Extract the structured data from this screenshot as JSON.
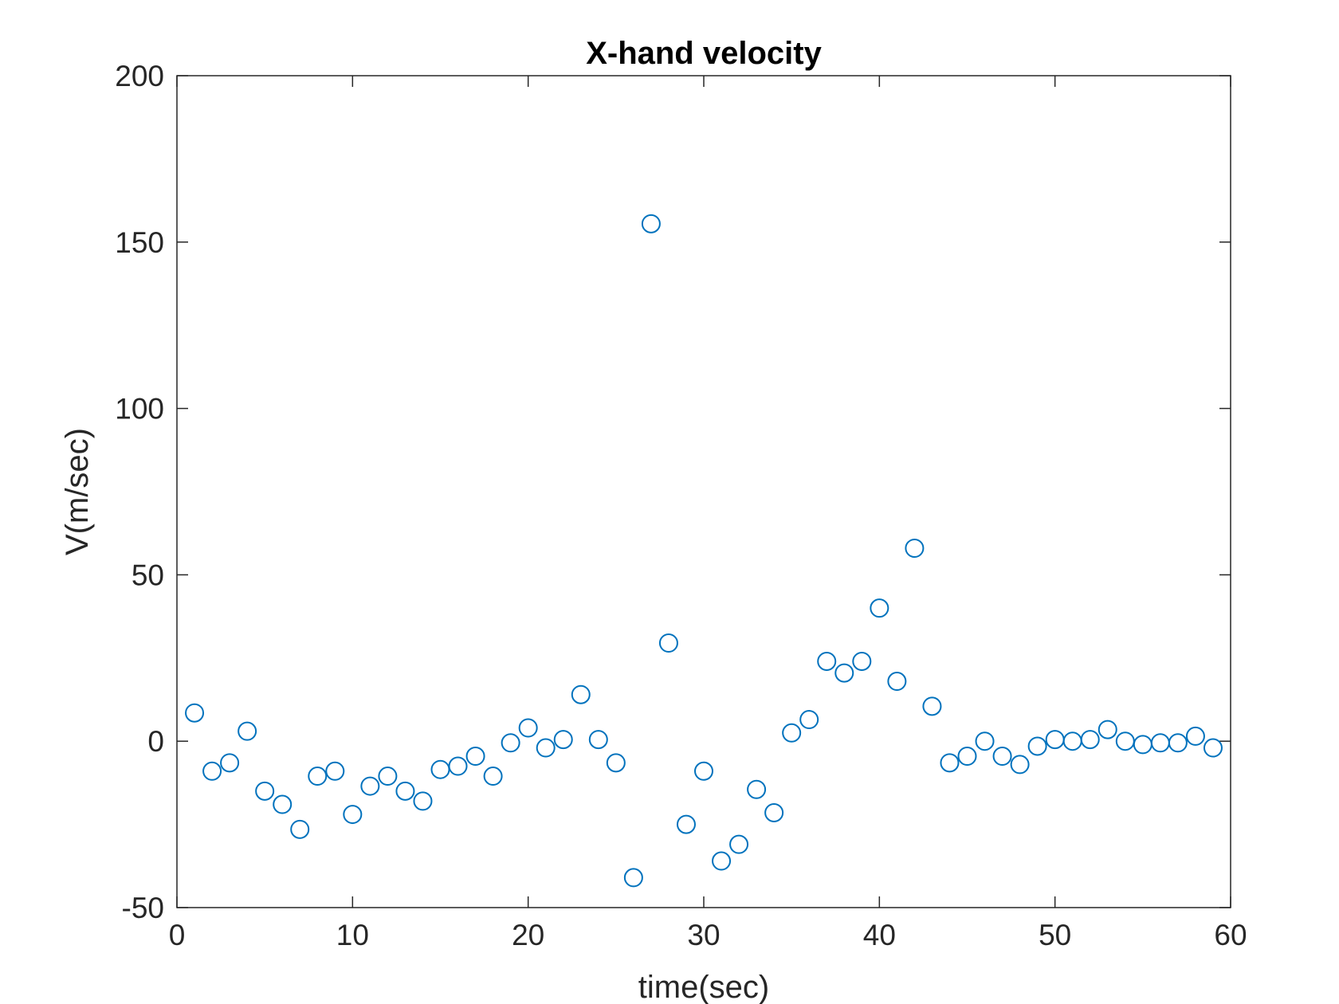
{
  "chart_data": {
    "type": "scatter",
    "title": "X-hand velocity",
    "xlabel": "time(sec)",
    "ylabel": "V(m/sec)",
    "xlim": [
      0,
      60
    ],
    "ylim": [
      -50,
      200
    ],
    "xticks": [
      "0",
      "10",
      "20",
      "30",
      "40",
      "50",
      "60"
    ],
    "yticks": [
      "-50",
      "0",
      "50",
      "100",
      "150",
      "200"
    ],
    "grid": false,
    "legend": "none",
    "marker": "open-circle",
    "color": "#0072BD",
    "x": [
      1,
      2,
      3,
      4,
      5,
      6,
      7,
      8,
      9,
      10,
      11,
      12,
      13,
      14,
      15,
      16,
      17,
      18,
      19,
      20,
      21,
      22,
      23,
      24,
      25,
      26,
      27,
      28,
      29,
      30,
      31,
      32,
      33,
      34,
      35,
      36,
      37,
      38,
      39,
      40,
      41,
      42,
      43,
      44,
      45,
      46,
      47,
      48,
      49,
      50,
      51,
      52,
      53,
      54,
      55,
      56,
      57,
      58,
      59
    ],
    "y": [
      8.5,
      -9,
      -6.5,
      3,
      -15,
      -19,
      -26.5,
      -10.5,
      -9,
      -22,
      -13.5,
      -10.5,
      -15,
      -18,
      -8.5,
      -7.5,
      -4.5,
      -10.5,
      -0.5,
      4,
      -2,
      0.5,
      14,
      0.5,
      -6.5,
      -41,
      155.5,
      29.5,
      -25,
      -9,
      -36,
      -31,
      -14.5,
      -21.5,
      2.5,
      6.5,
      24,
      20.5,
      24,
      40,
      18,
      58,
      10.5,
      -6.5,
      -4.5,
      0,
      -4.5,
      -7,
      -1.5,
      0.5,
      0,
      0.5,
      3.5,
      0,
      -1,
      -0.5,
      -0.5,
      1.5,
      -2
    ]
  }
}
